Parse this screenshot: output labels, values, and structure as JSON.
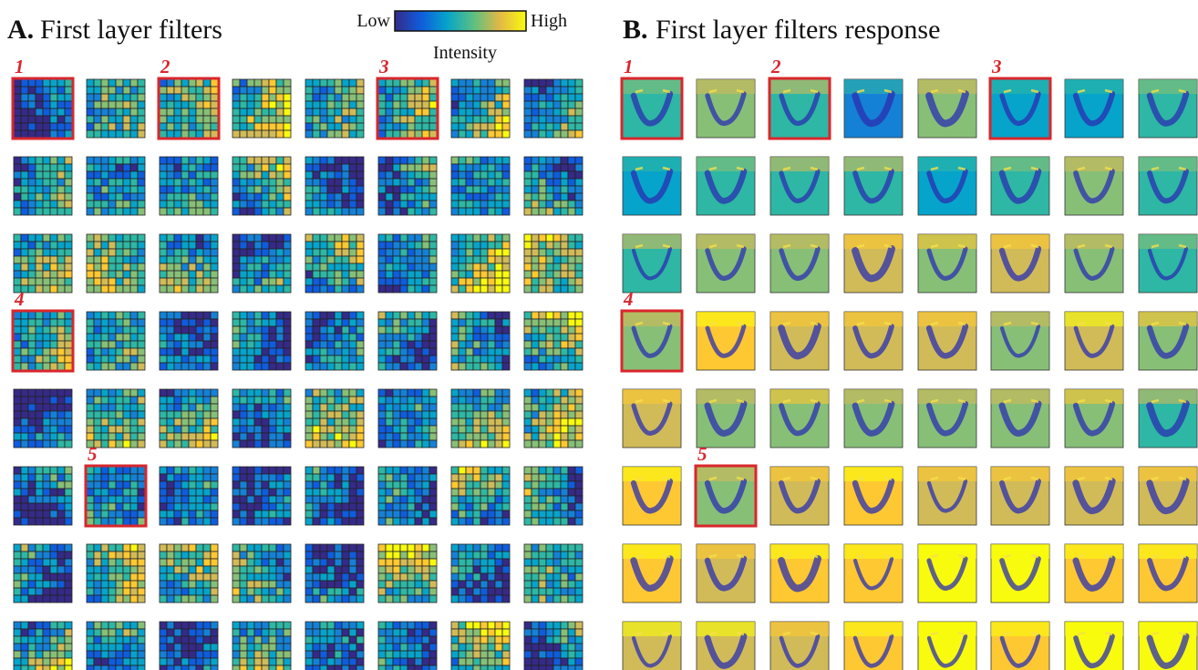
{
  "panel_a": {
    "label": "A.",
    "title": "First layer filters",
    "colorbar": {
      "low": "Low",
      "high": "High",
      "label": "Intensity"
    },
    "highlight_labels": [
      "1",
      "2",
      "3",
      "4",
      "5"
    ]
  },
  "panel_b": {
    "label": "B.",
    "title": "First layer filters response",
    "highlight_labels": [
      "1",
      "2",
      "3",
      "4",
      "5"
    ]
  }
}
